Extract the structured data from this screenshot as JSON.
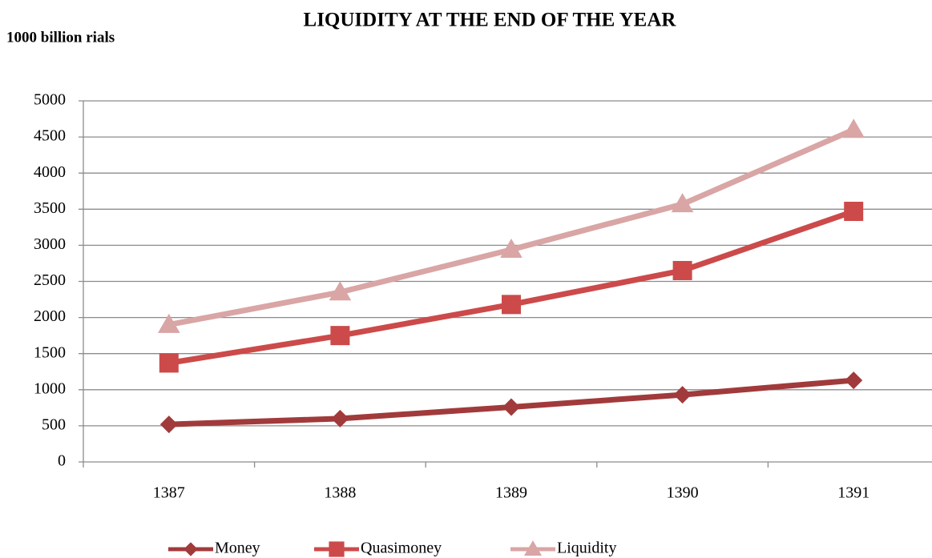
{
  "chart_data": {
    "type": "line",
    "title": "LIQUIDITY AT THE END OF THE YEAR",
    "y_axis_label": "1000 billion rials",
    "categories": [
      "1387",
      "1388",
      "1389",
      "1390",
      "1391"
    ],
    "series": [
      {
        "name": "Money",
        "color": "#a13a3b",
        "marker": "diamond",
        "values": [
          520,
          600,
          760,
          930,
          1130
        ]
      },
      {
        "name": "Quasimoney",
        "color": "#cc4a4a",
        "marker": "square",
        "values": [
          1370,
          1750,
          2180,
          2650,
          3470
        ]
      },
      {
        "name": "Liquidity",
        "color": "#d9a5a5",
        "marker": "triangle",
        "values": [
          1900,
          2350,
          2940,
          3570,
          4600
        ]
      }
    ],
    "ylim": [
      0,
      5000
    ],
    "yticks": [
      0,
      500,
      1000,
      1500,
      2000,
      2500,
      3000,
      3500,
      4000,
      4500,
      5000
    ],
    "grid": true,
    "legend": "bottom"
  }
}
